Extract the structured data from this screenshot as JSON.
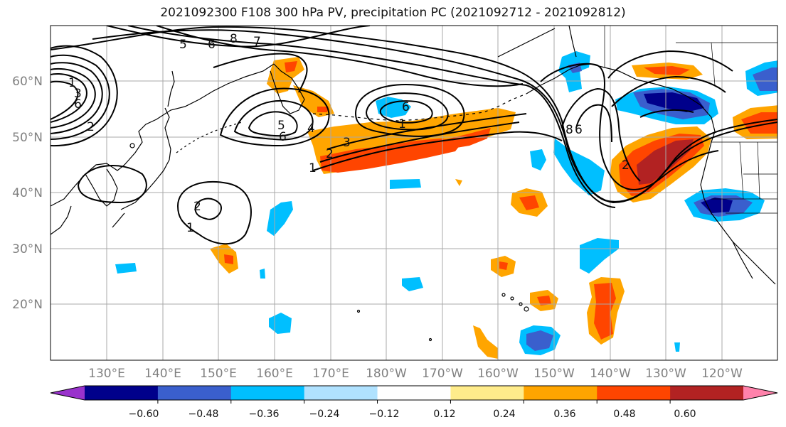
{
  "title": "2021092300 F108 300 hPa PV, precipitation PC (2021092712 - 2021092812)",
  "lat_labels": [
    "60°N",
    "50°N",
    "40°N",
    "30°N",
    "20°N"
  ],
  "lon_labels": [
    "130°E",
    "140°E",
    "150°E",
    "160°E",
    "170°E",
    "180°W",
    "170°W",
    "160°W",
    "150°W",
    "140°W",
    "130°W",
    "120°W"
  ],
  "colorbar": {
    "ticks": [
      "−0.60",
      "−0.48",
      "−0.36",
      "−0.24",
      "−0.12",
      "0.12",
      "0.24",
      "0.36",
      "0.48",
      "0.60"
    ],
    "colors": [
      "#9932CC",
      "#00008B",
      "#3A5FCD",
      "#00BFFF",
      "#B0E2FF",
      "#FFFFFF",
      "#FFEC8B",
      "#FFA500",
      "#FF4500",
      "#B22222",
      "#FF82AB"
    ]
  },
  "contour_labels": [
    "5",
    "6",
    "8",
    "7",
    "1",
    "3",
    "6",
    "2",
    "5",
    "4",
    "6",
    "2",
    "3",
    "1",
    "2",
    "1",
    "6",
    "1",
    "8",
    "6",
    "2"
  ]
}
